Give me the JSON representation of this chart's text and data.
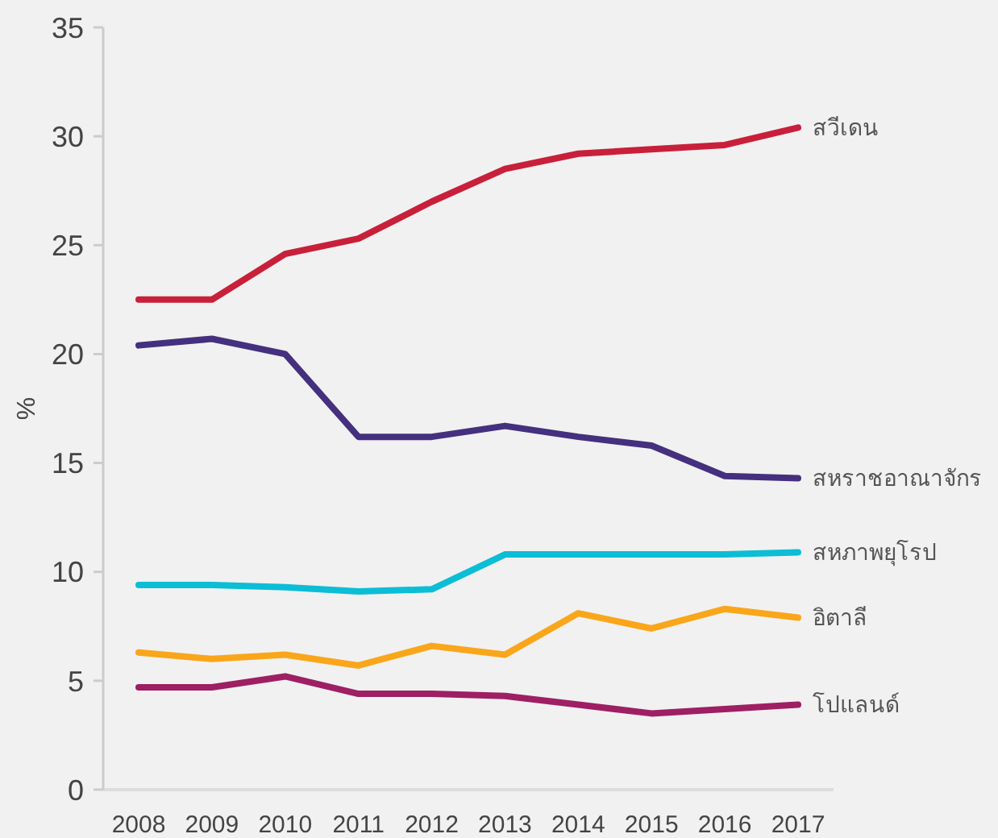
{
  "chart_data": {
    "type": "line",
    "ylabel": "%",
    "categories": [
      "2008",
      "2009",
      "2010",
      "2011",
      "2012",
      "2013",
      "2014",
      "2015",
      "2016",
      "2017"
    ],
    "series": [
      {
        "name": "สวีเดน",
        "color": "#c8203a",
        "values": [
          22.5,
          22.5,
          24.6,
          25.3,
          27.0,
          28.5,
          29.2,
          29.4,
          29.6,
          30.4
        ]
      },
      {
        "name": "สหราชอาณาจักร",
        "color": "#44307e",
        "values": [
          20.4,
          20.7,
          20.0,
          16.2,
          16.2,
          16.7,
          16.2,
          15.8,
          14.4,
          14.3
        ]
      },
      {
        "name": "สหภาพยุโรป",
        "color": "#0cbdd6",
        "values": [
          9.4,
          9.4,
          9.3,
          9.1,
          9.2,
          10.8,
          10.8,
          10.8,
          10.8,
          10.9
        ]
      },
      {
        "name": "อิตาลี",
        "color": "#f9a61b",
        "values": [
          6.3,
          6.0,
          6.2,
          5.7,
          6.6,
          6.2,
          8.1,
          7.4,
          8.3,
          7.9
        ]
      },
      {
        "name": "โปแลนด์",
        "color": "#9e1f63",
        "values": [
          4.7,
          4.7,
          5.2,
          4.4,
          4.4,
          4.3,
          3.9,
          3.5,
          3.7,
          3.9
        ]
      }
    ],
    "ylim": [
      0,
      35
    ],
    "yticks": [
      0,
      5,
      10,
      15,
      20,
      25,
      30,
      35
    ],
    "marker": "none",
    "line_style": "solid"
  }
}
